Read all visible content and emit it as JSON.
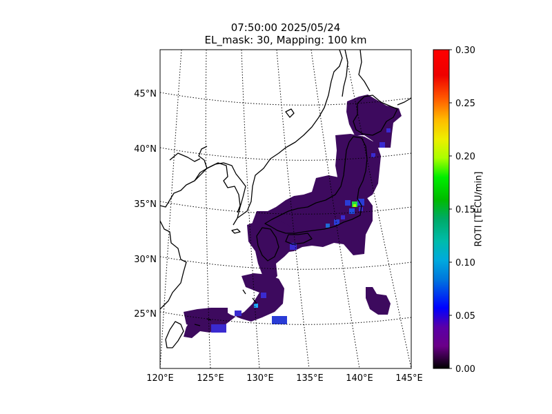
{
  "title": {
    "line1": "07:50:00 2025/05/24",
    "line2": "EL_mask: 30, Mapping: 100 km"
  },
  "map": {
    "projection": "conic",
    "lon_labels": [
      "120°E",
      "125°E",
      "130°E",
      "135°E",
      "140°E",
      "145°E"
    ],
    "lat_labels": [
      "25°N",
      "30°N",
      "35°N",
      "40°N",
      "45°N"
    ],
    "gridlines": "dotted",
    "coastline_color": "#000000",
    "background": "#ffffff"
  },
  "colorbar": {
    "label": "ROTI [TECU/min]",
    "colormap": "nipy_spectral",
    "min": 0.0,
    "max": 0.3,
    "ticks": [
      "0.00",
      "0.05",
      "0.10",
      "0.15",
      "0.20",
      "0.25",
      "0.30"
    ]
  },
  "roti_field": {
    "background_level_tecu_min": 0.03,
    "dominant_color": "#3d0a5e",
    "enhanced_spots": [
      {
        "location": "Kanto, near Tokyo",
        "lon": 139.5,
        "lat": 35.2,
        "value": 0.17
      },
      {
        "location": "Kanto, surroundings",
        "lon": 140.5,
        "lat": 35.4,
        "value": 0.09
      },
      {
        "location": "Tokai",
        "lon": 137.0,
        "lat": 34.5,
        "value": 0.07
      },
      {
        "location": "Okinawa",
        "lon": 127.8,
        "lat": 26.3,
        "value": 0.06
      }
    ]
  }
}
